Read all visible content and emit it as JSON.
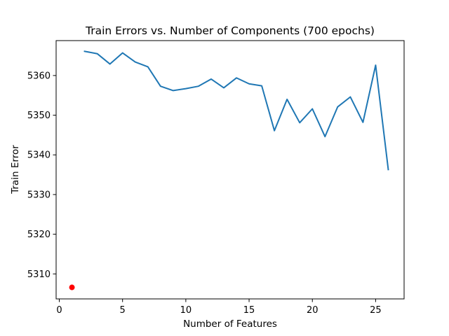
{
  "chart_data": {
    "type": "line",
    "title": "Train Errors vs. Number of Components (700 epochs)",
    "xlabel": "Number of Features",
    "ylabel": "Train Error",
    "xlim": [
      -0.25,
      27.25
    ],
    "ylim": [
      5303.7,
      5368.8
    ],
    "xticks": [
      0,
      5,
      10,
      15,
      20,
      25
    ],
    "yticks": [
      5310,
      5320,
      5330,
      5340,
      5350,
      5360
    ],
    "grid": false,
    "line_color": "#1f77b4",
    "series": [
      {
        "x": [
          2,
          3,
          4,
          5,
          6,
          7,
          8,
          9,
          10,
          11,
          12,
          13,
          14,
          15,
          16,
          17,
          18,
          19,
          20,
          21,
          22,
          23,
          24,
          25,
          26
        ],
        "values": [
          5366.1,
          5365.5,
          5362.9,
          5365.7,
          5363.4,
          5362.2,
          5357.3,
          5356.2,
          5356.7,
          5357.3,
          5359.1,
          5356.9,
          5359.4,
          5357.9,
          5357.4,
          5346.1,
          5354.0,
          5348.1,
          5351.6,
          5344.6,
          5352.1,
          5354.6,
          5348.2,
          5362.6,
          5336.3
        ]
      }
    ],
    "highlight_point": {
      "x": 1,
      "y": 5306.6,
      "color": "#ff0000"
    }
  }
}
